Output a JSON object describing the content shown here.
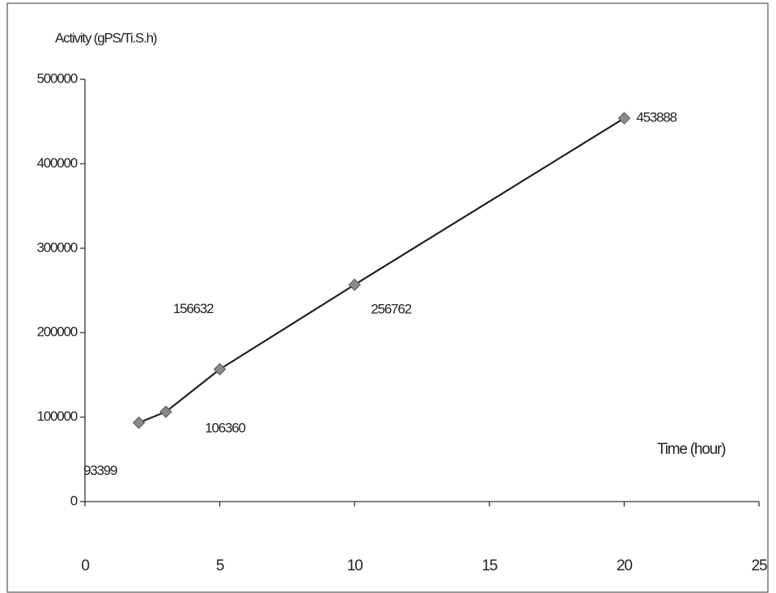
{
  "chart_data": {
    "type": "line",
    "y_label": "Activity (gPS/Ti.S.h)",
    "x_label": "Time (hour)",
    "x": [
      2,
      3,
      5,
      10,
      20
    ],
    "series": [
      {
        "name": "Activity",
        "color": "#222222",
        "marker_color": "#8a8a8a",
        "values": [
          93399,
          106360,
          156632,
          256762,
          453888
        ]
      }
    ],
    "xlim": [
      0,
      25
    ],
    "xticks": [
      0,
      5,
      10,
      15,
      20,
      25
    ],
    "ylim": [
      0,
      500000
    ],
    "yticks": [
      0,
      100000,
      200000,
      300000,
      400000,
      500000
    ],
    "grid": false
  }
}
